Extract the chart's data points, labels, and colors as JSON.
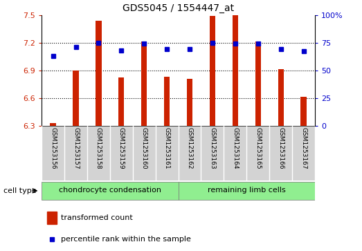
{
  "title": "GDS5045 / 1554447_at",
  "samples": [
    "GSM1253156",
    "GSM1253157",
    "GSM1253158",
    "GSM1253159",
    "GSM1253160",
    "GSM1253161",
    "GSM1253162",
    "GSM1253163",
    "GSM1253164",
    "GSM1253165",
    "GSM1253166",
    "GSM1253167"
  ],
  "transformed_count": [
    6.33,
    6.9,
    7.44,
    6.82,
    7.21,
    6.83,
    6.81,
    7.49,
    7.5,
    7.21,
    6.91,
    6.61
  ],
  "percentile_rank": [
    63,
    71,
    75,
    68,
    74,
    69,
    69,
    75,
    74,
    74,
    69,
    67
  ],
  "ylim_left": [
    6.3,
    7.5
  ],
  "ylim_right": [
    0,
    100
  ],
  "yticks_left": [
    6.3,
    6.6,
    6.9,
    7.2,
    7.5
  ],
  "yticks_right": [
    0,
    25,
    50,
    75,
    100
  ],
  "ytick_labels_left": [
    "6.3",
    "6.6",
    "6.9",
    "7.2",
    "7.5"
  ],
  "ytick_labels_right": [
    "0",
    "25",
    "50",
    "75",
    "100%"
  ],
  "bar_color": "#cc2200",
  "dot_color": "#0000cc",
  "group1_label": "chondrocyte condensation",
  "group2_label": "remaining limb cells",
  "cell_type_label": "cell type",
  "legend_bar_label": "transformed count",
  "legend_dot_label": "percentile rank within the sample",
  "group1_color": "#90ee90",
  "group2_color": "#90ee90",
  "bg_color": "#d3d3d3",
  "base_value": 6.3,
  "bar_width": 0.25
}
